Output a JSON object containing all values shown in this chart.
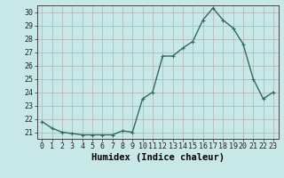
{
  "x": [
    0,
    1,
    2,
    3,
    4,
    5,
    6,
    7,
    8,
    9,
    10,
    11,
    12,
    13,
    14,
    15,
    16,
    17,
    18,
    19,
    20,
    21,
    22,
    23
  ],
  "y": [
    21.8,
    21.3,
    21.0,
    20.9,
    20.8,
    20.8,
    20.8,
    20.8,
    21.1,
    21.0,
    23.5,
    24.0,
    26.7,
    26.7,
    27.3,
    27.8,
    29.4,
    30.3,
    29.4,
    28.8,
    27.6,
    25.0,
    23.5,
    24.0
  ],
  "line_color": "#2d6b5e",
  "marker": "+",
  "marker_size": 3,
  "bg_color": "#c8e8e8",
  "grid_color": "#b0b0b0",
  "xlabel": "Humidex (Indice chaleur)",
  "xlim": [
    -0.5,
    23.5
  ],
  "ylim": [
    20.5,
    30.5
  ],
  "yticks": [
    21,
    22,
    23,
    24,
    25,
    26,
    27,
    28,
    29,
    30
  ],
  "xticks": [
    0,
    1,
    2,
    3,
    4,
    5,
    6,
    7,
    8,
    9,
    10,
    11,
    12,
    13,
    14,
    15,
    16,
    17,
    18,
    19,
    20,
    21,
    22,
    23
  ],
  "tick_fontsize": 6,
  "xlabel_fontsize": 7.5,
  "line_width": 1.0
}
